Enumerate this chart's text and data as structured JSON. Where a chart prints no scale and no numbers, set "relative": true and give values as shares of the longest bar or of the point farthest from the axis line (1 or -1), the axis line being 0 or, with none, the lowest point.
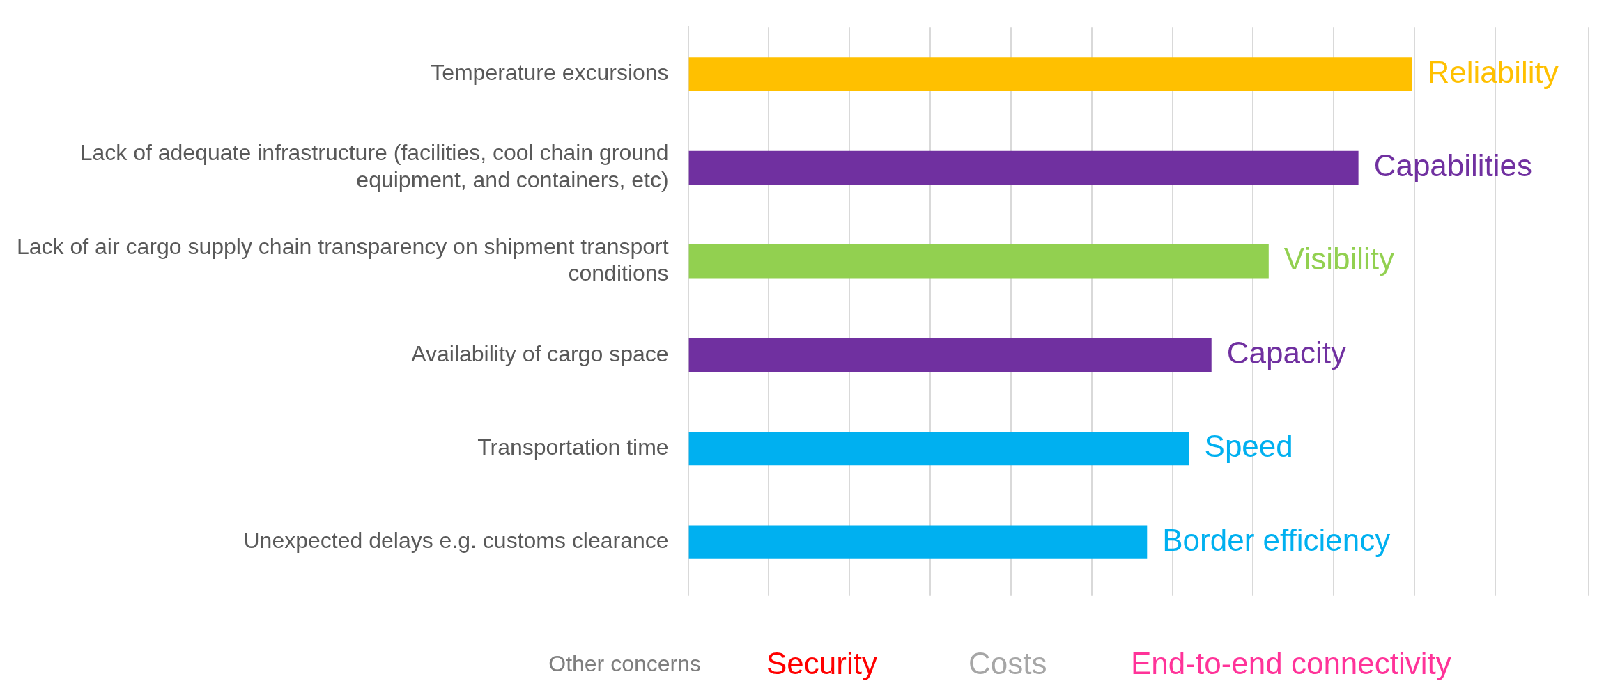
{
  "chart_data": {
    "type": "bar",
    "orientation": "horizontal",
    "relative": true,
    "categories": [
      "Temperature excursions",
      "Lack of adequate infrastructure (facilities, cool chain ground equipment, and containers, etc)",
      "Lack of air cargo supply chain transparency on shipment transport conditions",
      "Availability of cargo space",
      "Transportation time",
      "Unexpected delays e.g. customs clearance"
    ],
    "values": [
      1,
      0.926,
      0.802,
      0.723,
      0.692,
      0.634
    ],
    "colors": [
      "#ffc000",
      "#7030a0",
      "#92d050",
      "#7030a0",
      "#00b0f0",
      "#00b0f0"
    ],
    "grid": "x",
    "legend": false,
    "annotations": [
      {
        "text": "Reliability",
        "x": 1,
        "y": "Temperature excursions"
      },
      {
        "text": "Capabilities",
        "x": 0.926,
        "y": "Lack of adequate infrastructure (facilities, cool chain ground equipment, and containers, etc)"
      },
      {
        "text": "Visibility",
        "x": 0.802,
        "y": "Lack of air cargo supply chain transparency on shipment transport conditions"
      },
      {
        "text": "Capacity",
        "x": 0.723,
        "y": "Availability of cargo space"
      },
      {
        "text": "Speed",
        "x": 0.692,
        "y": "Transportation time"
      },
      {
        "text": "Border efficiency",
        "x": 0.634,
        "y": "Unexpected delays e.g. customs clearance"
      },
      "Other concerns",
      "Security",
      "Costs",
      "End-to-end connectivity"
    ]
  }
}
